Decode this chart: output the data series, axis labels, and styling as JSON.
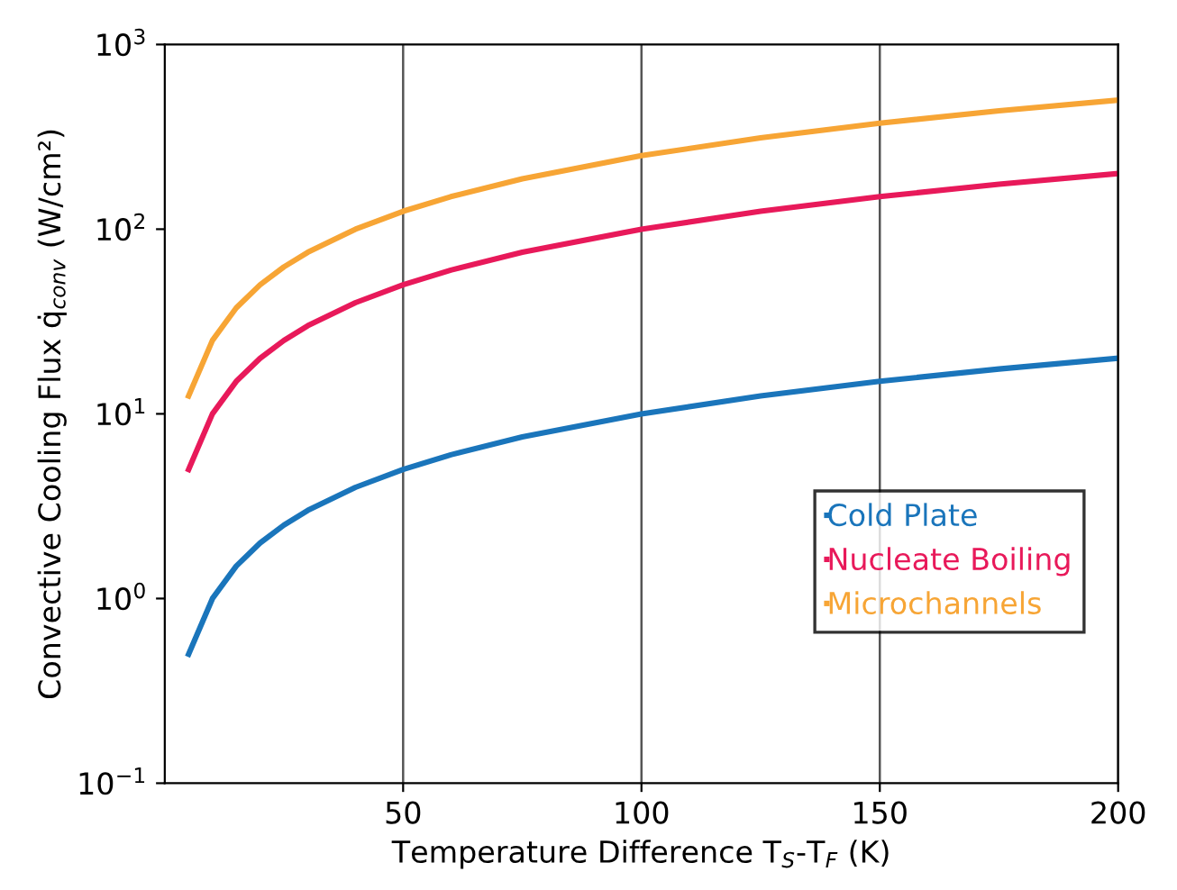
{
  "chart_data": {
    "type": "line",
    "xlabel": "Temperature Difference T$_{S}$-T$_{F}$ (K)",
    "ylabel": "Convective Cooling Flux q̇$_{conv}$ (W/cm²)",
    "x": [
      5,
      10,
      15,
      20,
      25,
      30,
      40,
      50,
      60,
      75,
      100,
      125,
      150,
      175,
      200
    ],
    "series": [
      {
        "name": "Cold Plate",
        "color": "#1a75bb",
        "values": [
          0.5,
          1.0,
          1.5,
          2.0,
          2.5,
          3.0,
          4.0,
          5.0,
          6.0,
          7.5,
          10,
          12.5,
          15,
          17.5,
          20
        ]
      },
      {
        "name": "Nucleate Boiling",
        "color": "#e8195a",
        "values": [
          5,
          10,
          15,
          20,
          25,
          30,
          40,
          50,
          60,
          75,
          100,
          125,
          150,
          175,
          200
        ]
      },
      {
        "name": "Microchannels",
        "color": "#f7a535",
        "values": [
          12.5,
          25,
          37.5,
          50,
          62.5,
          75,
          100,
          125,
          150,
          187.5,
          250,
          312.5,
          375,
          437.5,
          500
        ]
      }
    ],
    "log": "y",
    "xlim": [
      0,
      200
    ],
    "xticks": [
      50,
      100,
      150,
      200
    ],
    "ylim": [
      0.1,
      1000
    ],
    "yticks": [
      {
        "value": 0.1,
        "label": "10$^{−1}$"
      },
      {
        "value": 1,
        "label": "10$^{0}$"
      },
      {
        "value": 10,
        "label": "10$^{1}$"
      },
      {
        "value": 100,
        "label": "10$^{2}$"
      },
      {
        "value": 1000,
        "label": "10$^{3}$"
      }
    ],
    "grid": "x",
    "legend": "right",
    "marker": "none",
    "line_style": "solid"
  }
}
